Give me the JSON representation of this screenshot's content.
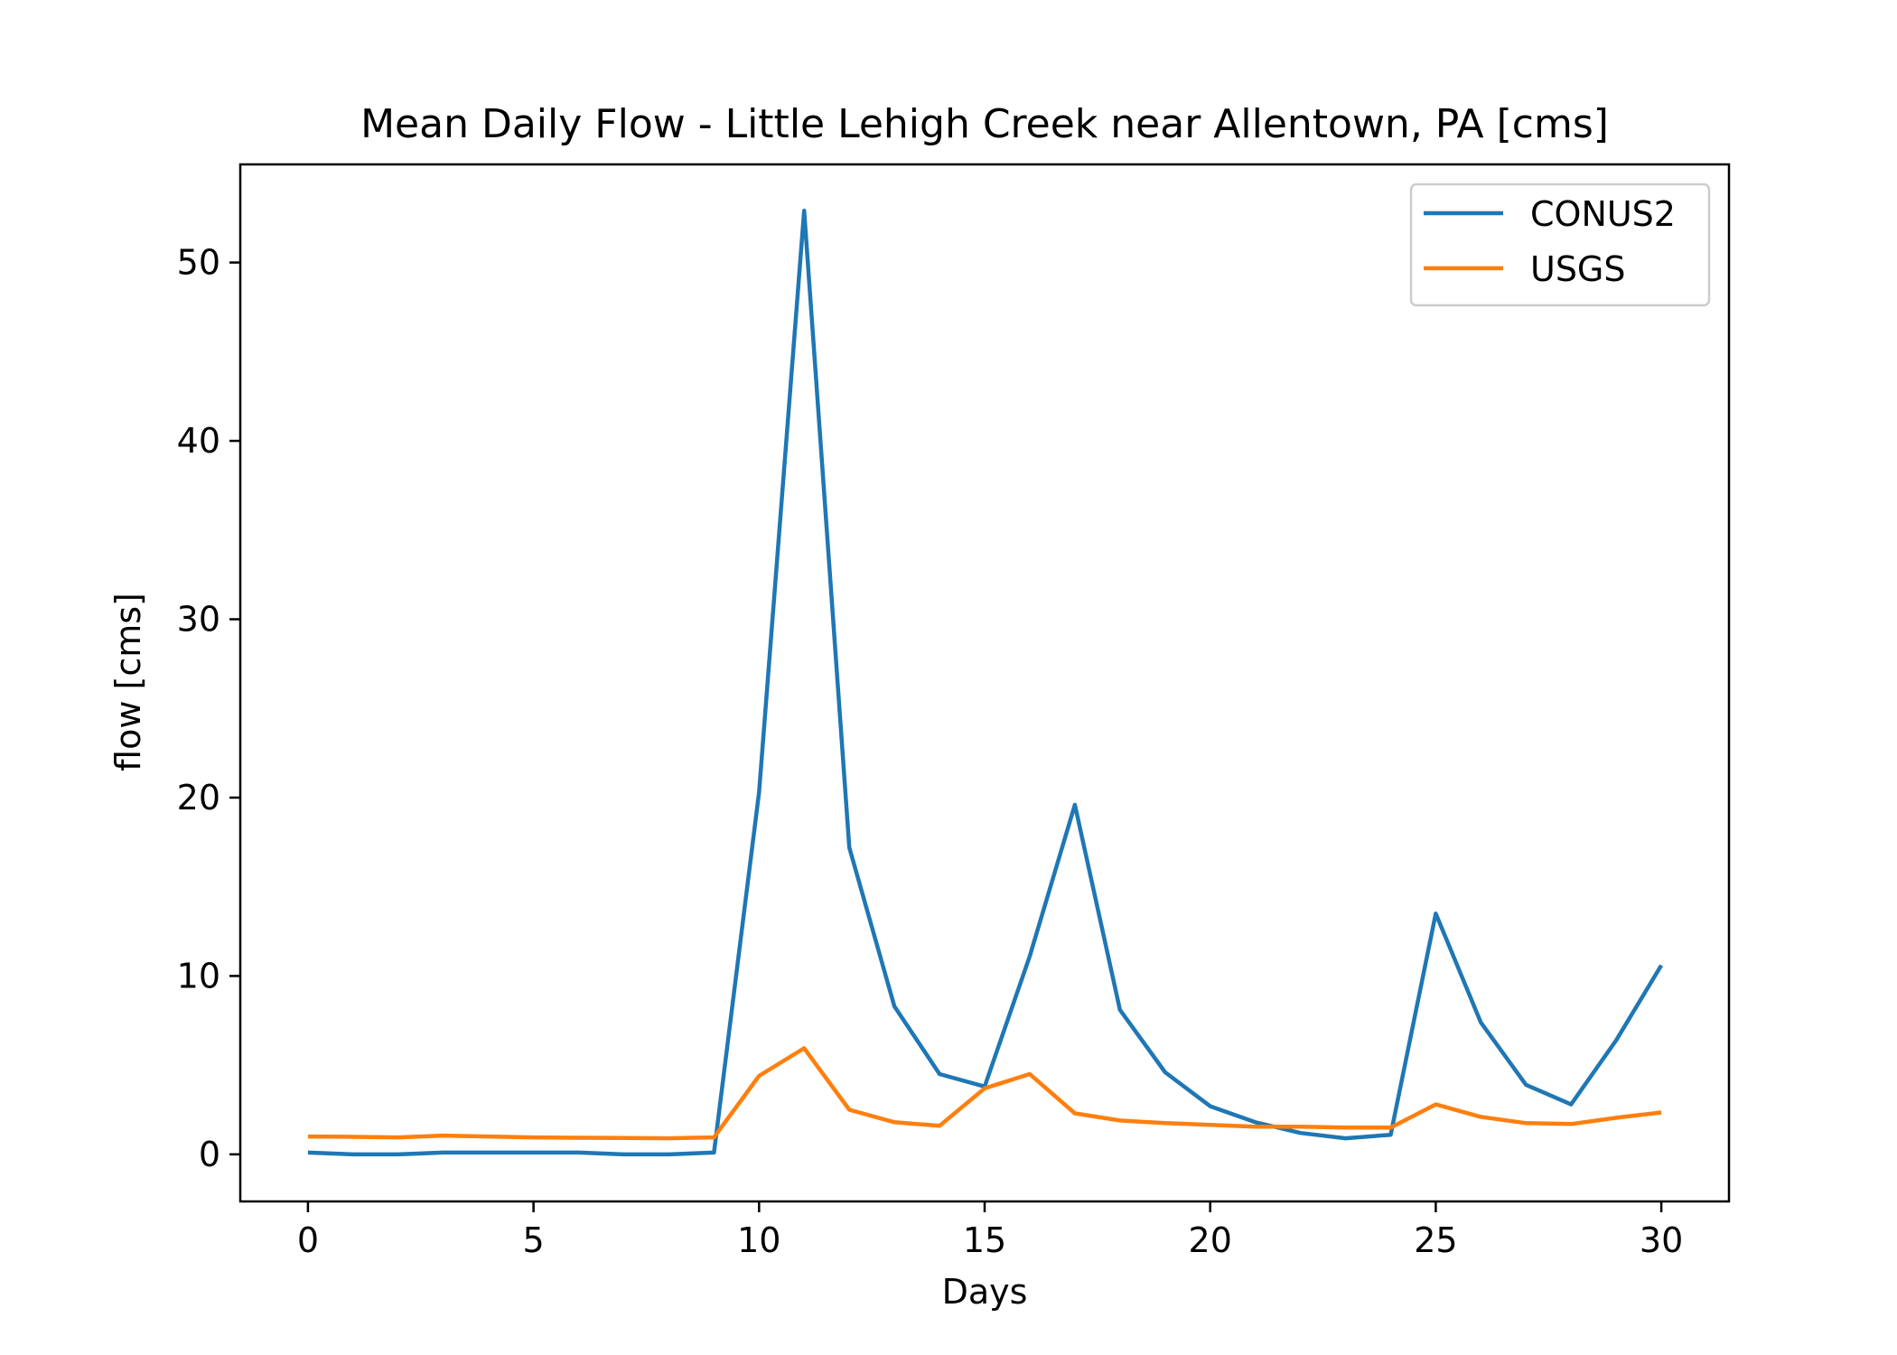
{
  "chart_data": {
    "type": "line",
    "title": "Mean Daily Flow - Little Lehigh Creek near Allentown, PA [cms]",
    "xlabel": "Days",
    "ylabel": "flow [cms]",
    "xlim": [
      -1.5,
      31.5
    ],
    "ylim": [
      -2.64,
      55.5
    ],
    "xticks": [
      0,
      5,
      10,
      15,
      20,
      25,
      30
    ],
    "yticks": [
      0,
      10,
      20,
      30,
      40,
      50
    ],
    "grid": false,
    "legend_position": "upper right",
    "x": [
      0,
      1,
      2,
      3,
      4,
      5,
      6,
      7,
      8,
      9,
      10,
      11,
      12,
      13,
      14,
      15,
      16,
      17,
      18,
      19,
      20,
      21,
      22,
      23,
      24,
      25,
      26,
      27,
      28,
      29,
      30
    ],
    "series": [
      {
        "name": "CONUS2",
        "color": "#1f77b4",
        "values": [
          0.1,
          0.0,
          0.0,
          0.1,
          0.1,
          0.1,
          0.1,
          0.0,
          0.0,
          0.1,
          20.3,
          52.9,
          17.2,
          8.3,
          4.5,
          3.8,
          11.1,
          19.6,
          8.1,
          4.6,
          2.7,
          1.8,
          1.2,
          0.9,
          1.1,
          13.5,
          7.4,
          3.9,
          2.8,
          6.4,
          10.6
        ]
      },
      {
        "name": "USGS",
        "color": "#ff7f0e",
        "values": [
          1.0,
          0.98,
          0.95,
          1.05,
          1.0,
          0.95,
          0.93,
          0.92,
          0.9,
          0.95,
          4.4,
          5.95,
          2.5,
          1.8,
          1.6,
          3.7,
          4.5,
          2.3,
          1.9,
          1.75,
          1.65,
          1.55,
          1.55,
          1.5,
          1.5,
          2.8,
          2.1,
          1.75,
          1.7,
          2.05,
          2.35
        ]
      }
    ]
  }
}
